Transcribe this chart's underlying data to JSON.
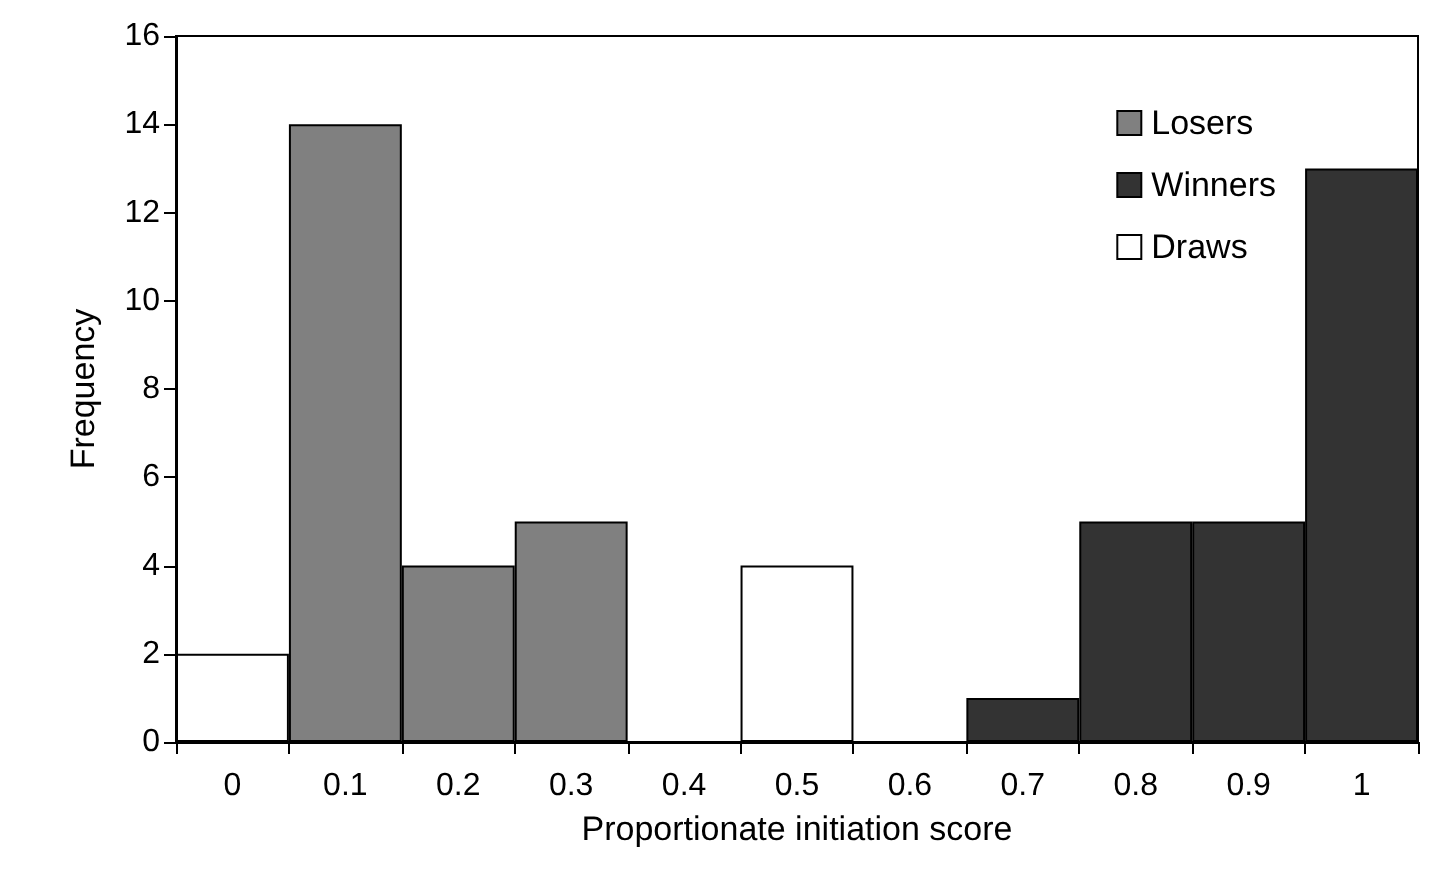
{
  "chart_data": {
    "type": "bar",
    "stacked": true,
    "xlabel": "Proportionate initiation score",
    "ylabel": "Frequency",
    "categories": [
      "0",
      "0.1",
      "0.2",
      "0.3",
      "0.4",
      "0.5",
      "0.6",
      "0.7",
      "0.8",
      "0.9",
      "1"
    ],
    "series": [
      {
        "name": "Losers",
        "color": "#808080",
        "values": [
          null,
          14,
          4,
          5,
          null,
          null,
          null,
          null,
          null,
          null,
          null
        ]
      },
      {
        "name": "Winners",
        "color": "#333333",
        "values": [
          null,
          null,
          null,
          null,
          null,
          null,
          null,
          1,
          5,
          5,
          13
        ]
      },
      {
        "name": "Draws",
        "color": "#ffffff",
        "values": [
          2,
          null,
          null,
          null,
          null,
          4,
          null,
          null,
          null,
          null,
          null
        ]
      }
    ],
    "ylim": [
      0,
      16
    ],
    "yticks": [
      0,
      2,
      4,
      6,
      8,
      10,
      12,
      14,
      16
    ],
    "grid": false,
    "legend": "top right"
  }
}
